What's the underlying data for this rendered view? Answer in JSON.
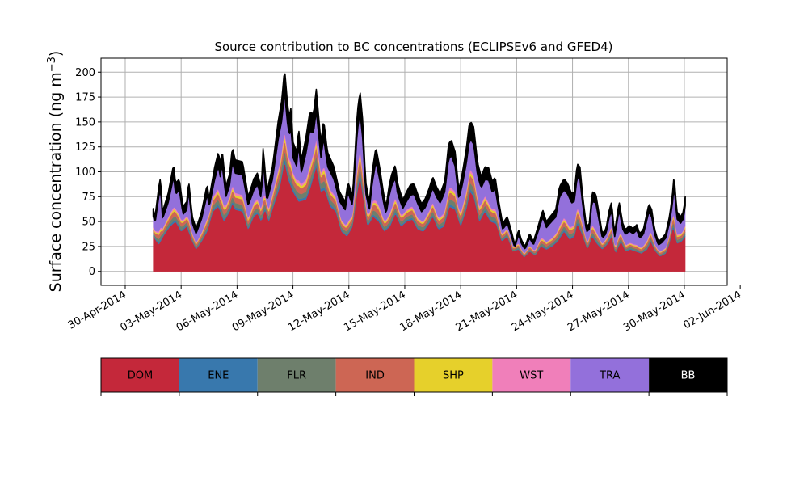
{
  "chart_data": {
    "type": "area",
    "title": "Source contribution to BC concentrations (ECLIPSEv6 and GFED4)",
    "xlabel": "",
    "ylabel": "Surface concentration (ng m",
    "ylabel_exp": "−3",
    "ylabel_close": ")",
    "ylim": [
      -14,
      214
    ],
    "xlim": [
      -1.3,
      32.3
    ],
    "yticks": [
      0,
      25,
      50,
      75,
      100,
      125,
      150,
      175,
      200
    ],
    "xticks": [
      {
        "v": 0,
        "label": "30-Apr-2014"
      },
      {
        "v": 3,
        "label": "03-May-2014"
      },
      {
        "v": 6,
        "label": "06-May-2014"
      },
      {
        "v": 9,
        "label": "09-May-2014"
      },
      {
        "v": 12,
        "label": "12-May-2014"
      },
      {
        "v": 15,
        "label": "15-May-2014"
      },
      {
        "v": 18,
        "label": "18-May-2014"
      },
      {
        "v": 21,
        "label": "21-May-2014"
      },
      {
        "v": 24,
        "label": "24-May-2014"
      },
      {
        "v": 27,
        "label": "27-May-2014"
      },
      {
        "v": 30,
        "label": "30-May-2014"
      },
      {
        "v": 33,
        "label": "02-Jun-2014"
      }
    ],
    "grid": true,
    "x_unit": "days since 30-Apr-2014",
    "total_knots": [
      [
        1.5,
        63
      ],
      [
        1.6,
        55
      ],
      [
        1.8,
        85
      ],
      [
        1.9,
        95
      ],
      [
        2.0,
        60
      ],
      [
        2.3,
        78
      ],
      [
        2.6,
        108
      ],
      [
        2.7,
        88
      ],
      [
        2.9,
        93
      ],
      [
        3.1,
        65
      ],
      [
        3.3,
        70
      ],
      [
        3.4,
        92
      ],
      [
        3.6,
        55
      ],
      [
        3.8,
        43
      ],
      [
        4.1,
        60
      ],
      [
        4.4,
        88
      ],
      [
        4.5,
        73
      ],
      [
        4.8,
        105
      ],
      [
        5.0,
        120
      ],
      [
        5.1,
        108
      ],
      [
        5.2,
        122
      ],
      [
        5.4,
        85
      ],
      [
        5.6,
        98
      ],
      [
        5.75,
        125
      ],
      [
        5.9,
        112
      ],
      [
        6.3,
        110
      ],
      [
        6.6,
        75
      ],
      [
        6.9,
        93
      ],
      [
        7.1,
        99
      ],
      [
        7.3,
        83
      ],
      [
        7.4,
        125
      ],
      [
        7.6,
        80
      ],
      [
        7.9,
        105
      ],
      [
        8.2,
        150
      ],
      [
        8.4,
        172
      ],
      [
        8.55,
        204
      ],
      [
        8.7,
        170
      ],
      [
        8.8,
        155
      ],
      [
        8.9,
        165
      ],
      [
        9.0,
        130
      ],
      [
        9.2,
        120
      ],
      [
        9.3,
        145
      ],
      [
        9.45,
        112
      ],
      [
        9.7,
        135
      ],
      [
        9.9,
        160
      ],
      [
        10.1,
        158
      ],
      [
        10.25,
        183
      ],
      [
        10.5,
        130
      ],
      [
        10.65,
        152
      ],
      [
        10.85,
        120
      ],
      [
        11.2,
        105
      ],
      [
        11.5,
        80
      ],
      [
        11.8,
        70
      ],
      [
        11.95,
        90
      ],
      [
        12.2,
        75
      ],
      [
        12.45,
        160
      ],
      [
        12.6,
        181
      ],
      [
        12.75,
        150
      ],
      [
        12.9,
        90
      ],
      [
        13.1,
        70
      ],
      [
        13.25,
        100
      ],
      [
        13.45,
        125
      ],
      [
        13.65,
        105
      ],
      [
        13.85,
        80
      ],
      [
        14.0,
        65
      ],
      [
        14.15,
        85
      ],
      [
        14.3,
        98
      ],
      [
        14.5,
        107
      ],
      [
        14.6,
        90
      ],
      [
        14.75,
        80
      ],
      [
        14.9,
        72
      ],
      [
        15.1,
        80
      ],
      [
        15.3,
        87
      ],
      [
        15.5,
        88
      ],
      [
        15.7,
        77
      ],
      [
        15.9,
        68
      ],
      [
        16.1,
        73
      ],
      [
        16.3,
        83
      ],
      [
        16.5,
        95
      ],
      [
        16.7,
        85
      ],
      [
        16.9,
        78
      ],
      [
        17.15,
        91
      ],
      [
        17.35,
        128
      ],
      [
        17.5,
        132
      ],
      [
        17.7,
        120
      ],
      [
        17.9,
        82
      ],
      [
        18.1,
        100
      ],
      [
        18.3,
        123
      ],
      [
        18.45,
        147
      ],
      [
        18.55,
        150
      ],
      [
        18.7,
        145
      ],
      [
        18.9,
        110
      ],
      [
        19.1,
        95
      ],
      [
        19.3,
        105
      ],
      [
        19.5,
        104
      ],
      [
        19.7,
        90
      ],
      [
        19.85,
        95
      ],
      [
        20.0,
        75
      ],
      [
        20.25,
        48
      ],
      [
        20.5,
        55
      ],
      [
        20.7,
        42
      ],
      [
        20.9,
        27
      ],
      [
        21.1,
        42
      ],
      [
        21.25,
        32
      ],
      [
        21.45,
        25
      ],
      [
        21.7,
        38
      ],
      [
        21.9,
        30
      ],
      [
        22.1,
        42
      ],
      [
        22.3,
        55
      ],
      [
        22.4,
        62
      ],
      [
        22.6,
        50
      ],
      [
        22.8,
        55
      ],
      [
        23.1,
        62
      ],
      [
        23.3,
        85
      ],
      [
        23.55,
        93
      ],
      [
        23.75,
        88
      ],
      [
        23.95,
        78
      ],
      [
        24.1,
        80
      ],
      [
        24.25,
        108
      ],
      [
        24.4,
        105
      ],
      [
        24.55,
        75
      ],
      [
        24.75,
        45
      ],
      [
        24.9,
        48
      ],
      [
        25.05,
        80
      ],
      [
        25.25,
        78
      ],
      [
        25.45,
        55
      ],
      [
        25.6,
        38
      ],
      [
        25.8,
        43
      ],
      [
        25.95,
        60
      ],
      [
        26.1,
        70
      ],
      [
        26.25,
        38
      ],
      [
        26.5,
        70
      ],
      [
        26.7,
        48
      ],
      [
        26.85,
        42
      ],
      [
        27.05,
        46
      ],
      [
        27.25,
        43
      ],
      [
        27.45,
        47
      ],
      [
        27.6,
        38
      ],
      [
        27.8,
        42
      ],
      [
        27.95,
        55
      ],
      [
        28.1,
        68
      ],
      [
        28.25,
        62
      ],
      [
        28.4,
        43
      ],
      [
        28.6,
        30
      ],
      [
        28.8,
        33
      ],
      [
        29.0,
        38
      ],
      [
        29.2,
        55
      ],
      [
        29.35,
        75
      ],
      [
        29.45,
        97
      ],
      [
        29.6,
        60
      ],
      [
        29.8,
        55
      ],
      [
        29.95,
        60
      ],
      [
        30.05,
        75
      ]
    ],
    "dom_fraction": 0.47,
    "dom_knots": [
      [
        1.5,
        35
      ],
      [
        1.8,
        27
      ],
      [
        2.1,
        37
      ],
      [
        2.4,
        45
      ],
      [
        2.7,
        50
      ],
      [
        3.0,
        40
      ],
      [
        3.3,
        45
      ],
      [
        3.6,
        30
      ],
      [
        3.8,
        22
      ],
      [
        4.1,
        30
      ],
      [
        4.4,
        40
      ],
      [
        4.7,
        60
      ],
      [
        5.0,
        65
      ],
      [
        5.3,
        50
      ],
      [
        5.6,
        60
      ],
      [
        5.75,
        68
      ],
      [
        5.9,
        62
      ],
      [
        6.3,
        60
      ],
      [
        6.6,
        42
      ],
      [
        6.9,
        55
      ],
      [
        7.1,
        58
      ],
      [
        7.3,
        50
      ],
      [
        7.5,
        62
      ],
      [
        7.7,
        50
      ],
      [
        8.0,
        68
      ],
      [
        8.3,
        85
      ],
      [
        8.55,
        110
      ],
      [
        8.75,
        92
      ],
      [
        9.0,
        80
      ],
      [
        9.3,
        70
      ],
      [
        9.7,
        72
      ],
      [
        9.95,
        85
      ],
      [
        10.25,
        105
      ],
      [
        10.5,
        80
      ],
      [
        10.7,
        82
      ],
      [
        11.0,
        65
      ],
      [
        11.3,
        60
      ],
      [
        11.6,
        40
      ],
      [
        11.9,
        35
      ],
      [
        12.2,
        45
      ],
      [
        12.45,
        80
      ],
      [
        12.6,
        95
      ],
      [
        12.8,
        70
      ],
      [
        13.0,
        45
      ],
      [
        13.3,
        55
      ],
      [
        13.6,
        50
      ],
      [
        13.9,
        40
      ],
      [
        14.2,
        45
      ],
      [
        14.5,
        58
      ],
      [
        14.8,
        45
      ],
      [
        15.1,
        50
      ],
      [
        15.4,
        52
      ],
      [
        15.7,
        42
      ],
      [
        16.0,
        40
      ],
      [
        16.3,
        48
      ],
      [
        16.5,
        55
      ],
      [
        16.8,
        42
      ],
      [
        17.1,
        45
      ],
      [
        17.4,
        65
      ],
      [
        17.7,
        62
      ],
      [
        18.0,
        45
      ],
      [
        18.3,
        62
      ],
      [
        18.5,
        80
      ],
      [
        18.7,
        75
      ],
      [
        19.0,
        50
      ],
      [
        19.3,
        60
      ],
      [
        19.6,
        50
      ],
      [
        19.9,
        48
      ],
      [
        20.2,
        30
      ],
      [
        20.5,
        35
      ],
      [
        20.8,
        20
      ],
      [
        21.1,
        22
      ],
      [
        21.4,
        14
      ],
      [
        21.7,
        20
      ],
      [
        22.0,
        16
      ],
      [
        22.3,
        25
      ],
      [
        22.6,
        22
      ],
      [
        22.9,
        25
      ],
      [
        23.2,
        30
      ],
      [
        23.55,
        40
      ],
      [
        23.85,
        32
      ],
      [
        24.1,
        35
      ],
      [
        24.25,
        48
      ],
      [
        24.5,
        38
      ],
      [
        24.8,
        22
      ],
      [
        25.05,
        35
      ],
      [
        25.3,
        28
      ],
      [
        25.6,
        22
      ],
      [
        25.9,
        28
      ],
      [
        26.1,
        35
      ],
      [
        26.3,
        18
      ],
      [
        26.6,
        30
      ],
      [
        26.85,
        20
      ],
      [
        27.1,
        22
      ],
      [
        27.4,
        20
      ],
      [
        27.7,
        18
      ],
      [
        28.0,
        22
      ],
      [
        28.2,
        30
      ],
      [
        28.45,
        20
      ],
      [
        28.7,
        15
      ],
      [
        29.0,
        18
      ],
      [
        29.2,
        28
      ],
      [
        29.4,
        45
      ],
      [
        29.6,
        28
      ],
      [
        29.85,
        30
      ],
      [
        30.05,
        35
      ]
    ],
    "series": [
      {
        "name": "DOM",
        "color": "#C4283A"
      },
      {
        "name": "ENE",
        "color": "#3878AD"
      },
      {
        "name": "FLR",
        "color": "#6E7F6C"
      },
      {
        "name": "IND",
        "color": "#CD6654"
      },
      {
        "name": "SHP",
        "color": "#E6D02B"
      },
      {
        "name": "WST",
        "color": "#F07FBA"
      },
      {
        "name": "TRA",
        "color": "#9370DB"
      },
      {
        "name": "BB",
        "color": "#000000"
      }
    ],
    "middle_layer_fractions": {
      "ENE": 0.02,
      "FLR": 0.04,
      "IND": 0.05,
      "SHP": 0.02,
      "WST": 0.02
    },
    "bb_fraction": 0.12
  },
  "legend": {
    "items": [
      {
        "name": "DOM",
        "color": "#C4283A",
        "text_color": "#000000"
      },
      {
        "name": "ENE",
        "color": "#3878AD",
        "text_color": "#000000"
      },
      {
        "name": "FLR",
        "color": "#6E7F6C",
        "text_color": "#000000"
      },
      {
        "name": "IND",
        "color": "#CD6654",
        "text_color": "#000000"
      },
      {
        "name": "SHP",
        "color": "#E6D02B",
        "text_color": "#000000"
      },
      {
        "name": "WST",
        "color": "#F07FBA",
        "text_color": "#000000"
      },
      {
        "name": "TRA",
        "color": "#9370DB",
        "text_color": "#000000"
      },
      {
        "name": "BB",
        "color": "#000000",
        "text_color": "#ffffff"
      }
    ]
  },
  "colors": {
    "grid": "#b0b0b0",
    "axis": "#000000",
    "background": "#ffffff"
  }
}
